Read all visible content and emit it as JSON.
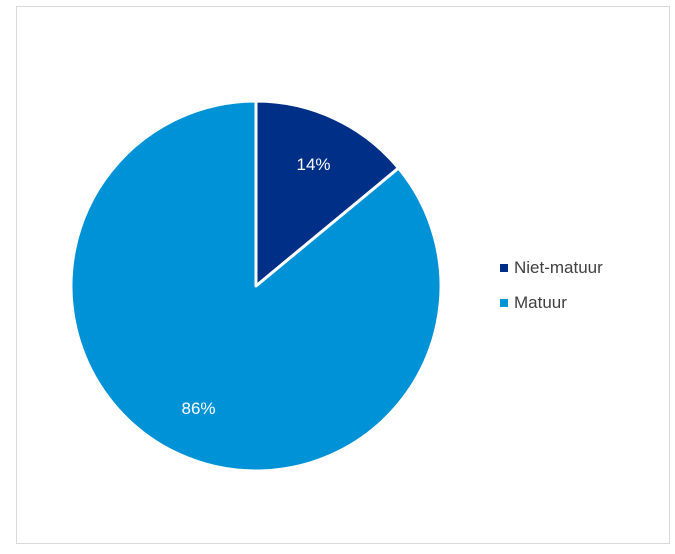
{
  "chart_data": {
    "type": "pie",
    "title": "",
    "categories": [
      "Niet-matuur",
      "Matuur"
    ],
    "values": [
      14,
      86
    ],
    "labels": [
      "14%",
      "86%"
    ],
    "colors": [
      "#002f87",
      "#0092d7"
    ],
    "legend": "right",
    "start_angle_deg": 0,
    "direction": "clockwise"
  }
}
